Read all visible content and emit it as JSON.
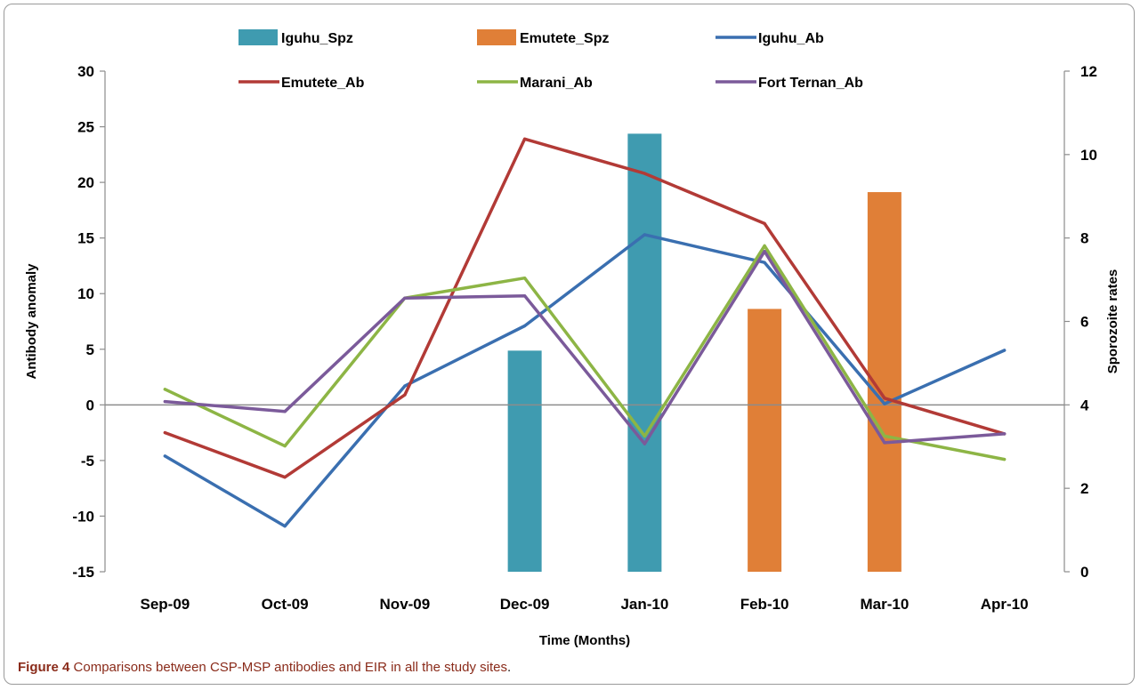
{
  "chart_data": {
    "type": "bar+line",
    "categories": [
      "Sep-09",
      "Oct-09",
      "Nov-09",
      "Dec-09",
      "Jan-10",
      "Feb-10",
      "Mar-10",
      "Apr-10"
    ],
    "xlabel": "Time (Months)",
    "ylabel": "Antibody anomaly",
    "y2label": "Sporozoite rates",
    "ylim": [
      -15,
      30
    ],
    "yticks": [
      -15,
      -10,
      -5,
      0,
      5,
      10,
      15,
      20,
      25,
      30
    ],
    "y2lim": [
      0,
      12
    ],
    "y2ticks": [
      0,
      2,
      4,
      6,
      8,
      10,
      12
    ],
    "grid": false,
    "legend_position": "top",
    "bar_series": [
      {
        "name": "Iguhu_Spz",
        "color": "#3f9bb0",
        "axis": "right",
        "values": [
          null,
          null,
          null,
          5.3,
          10.5,
          null,
          null,
          null
        ]
      },
      {
        "name": "Emutete_Spz",
        "color": "#e07f37",
        "axis": "right",
        "values": [
          null,
          null,
          null,
          null,
          null,
          6.3,
          9.1,
          null
        ]
      }
    ],
    "line_series": [
      {
        "name": "Iguhu_Ab",
        "color": "#3a6fb0",
        "axis": "left",
        "values": [
          -4.6,
          -10.9,
          1.7,
          7.1,
          15.3,
          12.8,
          0.1,
          4.9
        ]
      },
      {
        "name": "Emutete_Ab",
        "color": "#b23a36",
        "axis": "left",
        "values": [
          -2.5,
          -6.5,
          0.9,
          23.9,
          20.8,
          16.3,
          0.6,
          -2.6
        ]
      },
      {
        "name": "Marani_Ab",
        "color": "#8db545",
        "axis": "left",
        "values": [
          1.4,
          -3.7,
          9.6,
          11.4,
          -2.8,
          14.3,
          -2.8,
          -4.9
        ]
      },
      {
        "name": "Fort Ternan_Ab",
        "color": "#7b5a9a",
        "axis": "left",
        "values": [
          0.3,
          -0.6,
          9.6,
          9.8,
          -3.5,
          13.8,
          -3.4,
          -2.6
        ]
      }
    ]
  },
  "caption": {
    "label": "Figure 4",
    "text": " Comparisons between CSP-MSP antibodies and EIR in all the study sites"
  }
}
